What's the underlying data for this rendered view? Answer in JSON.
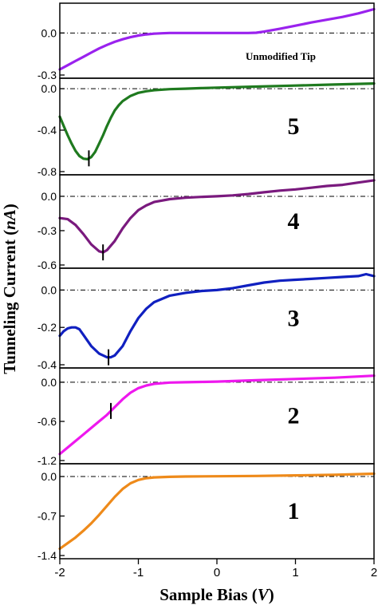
{
  "chart_data": {
    "type": "line",
    "xlabel": {
      "main": "Sample Bias (",
      "var": "V",
      "tail": ")"
    },
    "ylabel": {
      "main": "Tunneling Current (",
      "var": "nA",
      "tail": ")"
    },
    "xlim": [
      -2,
      2
    ],
    "x_ticks": [
      "-2",
      "-1",
      "0",
      "1",
      "2"
    ],
    "panels": [
      {
        "name": "Unmodified Tip",
        "label": "",
        "annotation": "Unmodified Tip",
        "color": "#9a22ee",
        "ylim": [
          -0.3,
          0.19
        ],
        "y_ticks": [
          {
            "v": 0.0,
            "t": "0.0"
          },
          {
            "v": -0.3,
            "t": "-0.3"
          }
        ],
        "x": [
          -2.0,
          -1.9,
          -1.8,
          -1.7,
          -1.6,
          -1.5,
          -1.4,
          -1.3,
          -1.2,
          -1.1,
          -1.0,
          -0.9,
          -0.8,
          -0.7,
          -0.6,
          -0.4,
          -0.2,
          0.0,
          0.2,
          0.4,
          0.5,
          0.6,
          0.8,
          1.0,
          1.2,
          1.4,
          1.6,
          1.8,
          2.0
        ],
        "y": [
          -0.26,
          -0.23,
          -0.2,
          -0.17,
          -0.14,
          -0.11,
          -0.085,
          -0.063,
          -0.045,
          -0.03,
          -0.018,
          -0.01,
          -0.005,
          -0.002,
          0.0,
          0.0,
          0.0,
          0.0,
          0.0,
          0.0,
          0.002,
          0.01,
          0.03,
          0.052,
          0.075,
          0.095,
          0.115,
          0.14,
          0.17
        ],
        "marker_x": null
      },
      {
        "name": "5",
        "label": "5",
        "annotation": "",
        "color": "#1f7a1f",
        "ylim": [
          -0.8,
          0.07
        ],
        "y_ticks": [
          {
            "v": 0.0,
            "t": "0.0"
          },
          {
            "v": -0.4,
            "t": "-0.4"
          },
          {
            "v": -0.8,
            "t": "-0.8"
          }
        ],
        "x": [
          -2.0,
          -1.95,
          -1.9,
          -1.85,
          -1.8,
          -1.75,
          -1.7,
          -1.65,
          -1.6,
          -1.55,
          -1.5,
          -1.45,
          -1.4,
          -1.35,
          -1.3,
          -1.25,
          -1.2,
          -1.1,
          -1.0,
          -0.9,
          -0.8,
          -0.6,
          -0.4,
          -0.2,
          0.0,
          0.5,
          1.0,
          1.5,
          2.0
        ],
        "y": [
          -0.27,
          -0.36,
          -0.45,
          -0.53,
          -0.6,
          -0.65,
          -0.675,
          -0.68,
          -0.66,
          -0.61,
          -0.53,
          -0.45,
          -0.36,
          -0.28,
          -0.21,
          -0.16,
          -0.12,
          -0.07,
          -0.04,
          -0.025,
          -0.015,
          -0.005,
          0.0,
          0.005,
          0.01,
          0.02,
          0.03,
          0.04,
          0.05
        ],
        "marker_x": -1.63
      },
      {
        "name": "4",
        "label": "4",
        "annotation": "",
        "color": "#7a1a7e",
        "ylim": [
          -0.6,
          0.16
        ],
        "y_ticks": [
          {
            "v": 0.0,
            "t": "0.0"
          },
          {
            "v": -0.3,
            "t": "-0.3"
          },
          {
            "v": -0.6,
            "t": "-0.6"
          }
        ],
        "x": [
          -2.0,
          -1.9,
          -1.8,
          -1.7,
          -1.6,
          -1.5,
          -1.45,
          -1.4,
          -1.3,
          -1.2,
          -1.1,
          -1.0,
          -0.9,
          -0.8,
          -0.6,
          -0.4,
          -0.2,
          0.0,
          0.2,
          0.4,
          0.6,
          0.8,
          1.0,
          1.2,
          1.4,
          1.6,
          1.8,
          2.0
        ],
        "y": [
          -0.19,
          -0.2,
          -0.25,
          -0.33,
          -0.42,
          -0.48,
          -0.49,
          -0.47,
          -0.39,
          -0.28,
          -0.19,
          -0.12,
          -0.08,
          -0.05,
          -0.025,
          -0.012,
          -0.005,
          0.0,
          0.008,
          0.02,
          0.035,
          0.05,
          0.06,
          0.075,
          0.09,
          0.1,
          0.12,
          0.14
        ],
        "marker_x": -1.45
      },
      {
        "name": "3",
        "label": "3",
        "annotation": "",
        "color": "#1020c0",
        "ylim": [
          -0.4,
          0.1
        ],
        "y_ticks": [
          {
            "v": 0.0,
            "t": "0.0"
          },
          {
            "v": -0.2,
            "t": "-0.2"
          },
          {
            "v": -0.4,
            "t": "-0.4"
          }
        ],
        "x": [
          -2.0,
          -1.95,
          -1.9,
          -1.85,
          -1.8,
          -1.75,
          -1.7,
          -1.65,
          -1.6,
          -1.5,
          -1.4,
          -1.35,
          -1.3,
          -1.2,
          -1.1,
          -1.0,
          -0.9,
          -0.8,
          -0.6,
          -0.4,
          -0.2,
          0.0,
          0.2,
          0.4,
          0.6,
          0.8,
          1.0,
          1.2,
          1.4,
          1.6,
          1.8,
          1.9,
          2.0
        ],
        "y": [
          -0.245,
          -0.22,
          -0.205,
          -0.2,
          -0.2,
          -0.21,
          -0.24,
          -0.27,
          -0.3,
          -0.34,
          -0.36,
          -0.36,
          -0.35,
          -0.3,
          -0.22,
          -0.15,
          -0.1,
          -0.065,
          -0.03,
          -0.015,
          -0.005,
          0.0,
          0.01,
          0.025,
          0.04,
          0.05,
          0.055,
          0.06,
          0.065,
          0.07,
          0.075,
          0.085,
          0.075
        ],
        "marker_x": -1.38
      },
      {
        "name": "2",
        "label": "2",
        "annotation": "",
        "color": "#ee18ee",
        "ylim": [
          -1.2,
          0.17
        ],
        "y_ticks": [
          {
            "v": 0.0,
            "t": "0.0"
          },
          {
            "v": -0.6,
            "t": "-0.6"
          },
          {
            "v": -1.2,
            "t": "-1.2"
          }
        ],
        "x": [
          -2.0,
          -1.9,
          -1.8,
          -1.7,
          -1.6,
          -1.5,
          -1.4,
          -1.3,
          -1.2,
          -1.1,
          -1.0,
          -0.9,
          -0.8,
          -0.6,
          -0.4,
          -0.2,
          0.0,
          0.5,
          1.0,
          1.5,
          2.0
        ],
        "y": [
          -1.1,
          -1.0,
          -0.9,
          -0.8,
          -0.7,
          -0.6,
          -0.5,
          -0.38,
          -0.26,
          -0.16,
          -0.09,
          -0.05,
          -0.025,
          -0.005,
          0.0,
          0.005,
          0.01,
          0.03,
          0.05,
          0.07,
          0.1
        ],
        "marker_x": -1.35
      },
      {
        "name": "1",
        "label": "1",
        "annotation": "",
        "color": "#ee8a1a",
        "ylim": [
          -1.4,
          0.17
        ],
        "y_ticks": [
          {
            "v": 0.0,
            "t": "0.0"
          },
          {
            "v": -0.7,
            "t": "-0.7"
          },
          {
            "v": -1.4,
            "t": "-1.4"
          }
        ],
        "x": [
          -2.0,
          -1.9,
          -1.8,
          -1.7,
          -1.6,
          -1.5,
          -1.4,
          -1.3,
          -1.2,
          -1.1,
          -1.0,
          -0.9,
          -0.8,
          -0.6,
          -0.4,
          0.0,
          0.5,
          1.0,
          1.5,
          2.0
        ],
        "y": [
          -1.28,
          -1.18,
          -1.08,
          -0.96,
          -0.83,
          -0.68,
          -0.52,
          -0.36,
          -0.22,
          -0.12,
          -0.06,
          -0.03,
          -0.015,
          -0.005,
          0.0,
          0.005,
          0.01,
          0.02,
          0.03,
          0.05
        ],
        "marker_x": null
      }
    ]
  }
}
